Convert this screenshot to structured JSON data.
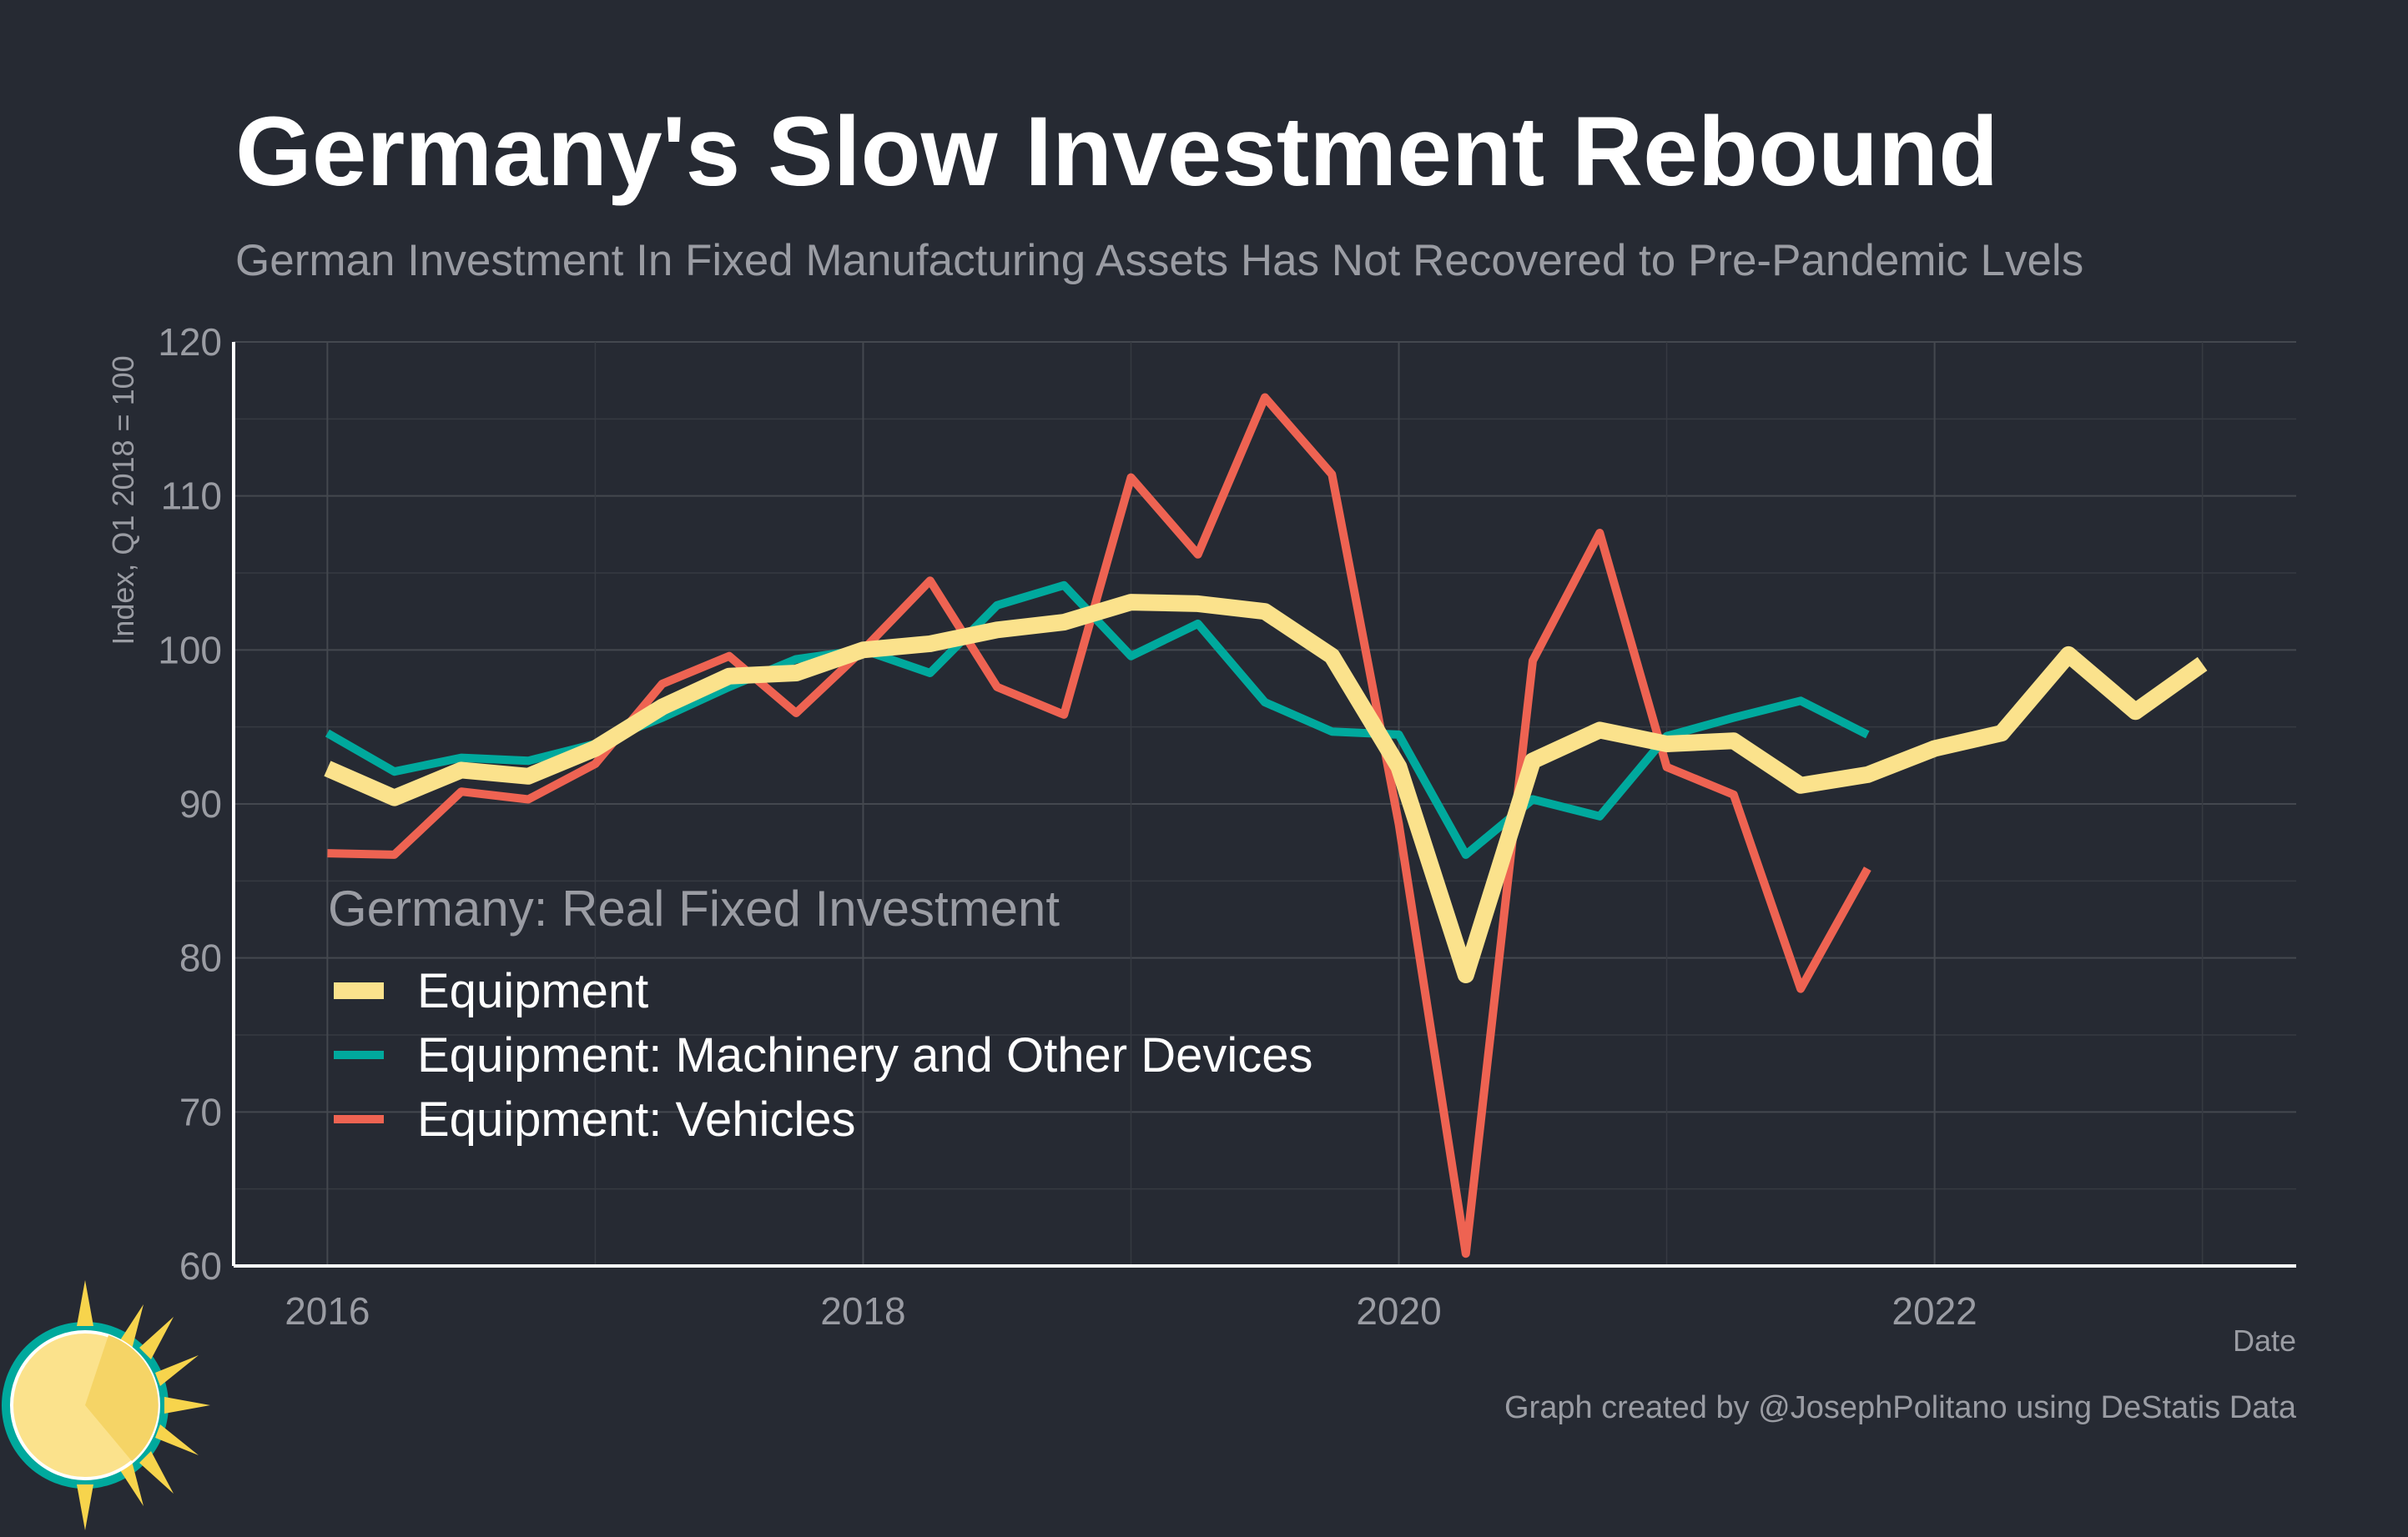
{
  "chart_data": {
    "type": "line",
    "title": "Germany's Slow Investment Rebound",
    "subtitle": "German Investment In Fixed Manufacturing Assets Has Not Recovered to Pre-Pandemic Lvels",
    "xlabel": "Date",
    "ylabel": "Index, Q1 2018 = 100",
    "ylim": [
      60,
      120
    ],
    "xlim": [
      2015.65,
      2023.35
    ],
    "y_ticks": [
      60,
      70,
      80,
      90,
      100,
      110,
      120
    ],
    "x_ticks": [
      2016,
      2018,
      2020,
      2022
    ],
    "grid": true,
    "legend_title": "Germany: Real Fixed Investment",
    "legend_position": "bottom-left",
    "caption": "Graph created by @JosephPolitano using DeStatis Data",
    "series": [
      {
        "name": "Equipment",
        "color": "#fbe28c",
        "width": 20,
        "x": [
          "2016-Q1",
          "2016-Q2",
          "2016-Q3",
          "2016-Q4",
          "2017-Q1",
          "2017-Q2",
          "2017-Q3",
          "2017-Q4",
          "2018-Q1",
          "2018-Q2",
          "2018-Q3",
          "2018-Q4",
          "2019-Q1",
          "2019-Q2",
          "2019-Q3",
          "2019-Q4",
          "2020-Q1",
          "2020-Q2",
          "2020-Q3",
          "2020-Q4",
          "2021-Q1",
          "2021-Q2",
          "2021-Q3",
          "2021-Q4",
          "2022-Q1",
          "2022-Q2",
          "2022-Q3",
          "2022-Q4",
          "2023-Q1"
        ],
        "values": [
          92.3,
          90.4,
          92.2,
          91.8,
          93.6,
          96.3,
          98.3,
          98.5,
          100.0,
          100.4,
          101.3,
          101.8,
          103.1,
          103.0,
          102.5,
          99.6,
          92.4,
          78.9,
          92.8,
          94.8,
          93.9,
          94.1,
          91.2,
          91.9,
          93.6,
          94.6,
          99.7,
          96.0,
          99.1
        ]
      },
      {
        "name": "Equipment: Machinery and Other Devices",
        "color": "#00a99d",
        "width": 10,
        "x": [
          "2016-Q1",
          "2016-Q2",
          "2016-Q3",
          "2016-Q4",
          "2017-Q1",
          "2017-Q2",
          "2017-Q3",
          "2017-Q4",
          "2018-Q1",
          "2018-Q2",
          "2018-Q3",
          "2018-Q4",
          "2019-Q1",
          "2019-Q2",
          "2019-Q3",
          "2019-Q4",
          "2020-Q1",
          "2020-Q2",
          "2020-Q3",
          "2020-Q4",
          "2021-Q1",
          "2021-Q2",
          "2021-Q3",
          "2021-Q4"
        ],
        "values": [
          94.6,
          92.1,
          93.0,
          92.8,
          93.9,
          95.6,
          97.6,
          99.4,
          100.0,
          98.5,
          102.9,
          104.2,
          99.6,
          101.7,
          96.6,
          94.7,
          94.5,
          86.7,
          90.3,
          89.2,
          94.4,
          95.6,
          96.7,
          94.5
        ]
      },
      {
        "name": "Equipment: Vehicles",
        "color": "#ee6352",
        "width": 10,
        "x": [
          "2016-Q1",
          "2016-Q2",
          "2016-Q3",
          "2016-Q4",
          "2017-Q1",
          "2017-Q2",
          "2017-Q3",
          "2017-Q4",
          "2018-Q1",
          "2018-Q2",
          "2018-Q3",
          "2018-Q4",
          "2019-Q1",
          "2019-Q2",
          "2019-Q3",
          "2019-Q4",
          "2020-Q1",
          "2020-Q2",
          "2020-Q3",
          "2020-Q4",
          "2021-Q1",
          "2021-Q2",
          "2021-Q3",
          "2021-Q4"
        ],
        "values": [
          86.8,
          86.7,
          90.8,
          90.3,
          92.6,
          97.8,
          99.6,
          95.9,
          100.0,
          104.5,
          97.6,
          95.8,
          111.2,
          106.2,
          116.4,
          111.4,
          88.7,
          60.8,
          99.3,
          107.6,
          92.4,
          90.6,
          78.0,
          85.8
        ]
      }
    ]
  }
}
